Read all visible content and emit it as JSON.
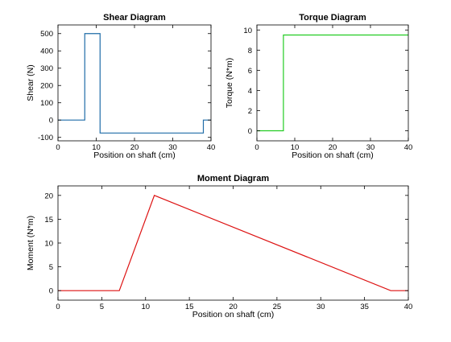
{
  "chart_data": [
    {
      "type": "line",
      "title": "Shear Diagram",
      "xlabel": "Position on shaft (cm)",
      "ylabel": "Shear (N)",
      "xlim": [
        0,
        40
      ],
      "ylim": [
        -120,
        550
      ],
      "xticks": [
        0,
        10,
        20,
        30,
        40
      ],
      "yticks": [
        -100,
        0,
        100,
        200,
        300,
        400,
        500
      ],
      "grid": false,
      "color": "#1f6ca8",
      "series": [
        {
          "x": [
            0,
            7,
            7,
            11,
            11,
            38,
            38,
            40
          ],
          "y": [
            0,
            0,
            500,
            500,
            -75,
            -75,
            0,
            0
          ]
        }
      ]
    },
    {
      "type": "line",
      "title": "Torque Diagram",
      "xlabel": "Position on shaft (cm)",
      "ylabel": "Torque (N*m)",
      "xlim": [
        0,
        40
      ],
      "ylim": [
        -1,
        10.5
      ],
      "xticks": [
        0,
        10,
        20,
        30,
        40
      ],
      "yticks": [
        0,
        2,
        4,
        6,
        8,
        10
      ],
      "grid": false,
      "color": "#22cc22",
      "series": [
        {
          "x": [
            0,
            7,
            7,
            40
          ],
          "y": [
            0,
            0,
            9.5,
            9.5
          ]
        }
      ]
    },
    {
      "type": "line",
      "title": "Moment Diagram",
      "xlabel": "Position on shaft (cm)",
      "ylabel": "Moment (N*m)",
      "xlim": [
        0,
        40
      ],
      "ylim": [
        -2,
        22
      ],
      "xticks": [
        0,
        5,
        10,
        15,
        20,
        25,
        30,
        35,
        40
      ],
      "yticks": [
        0,
        5,
        10,
        15,
        20
      ],
      "grid": false,
      "color": "#dd1111",
      "series": [
        {
          "x": [
            0,
            7,
            11,
            38,
            40
          ],
          "y": [
            0,
            0,
            20,
            0,
            0
          ]
        }
      ]
    }
  ]
}
